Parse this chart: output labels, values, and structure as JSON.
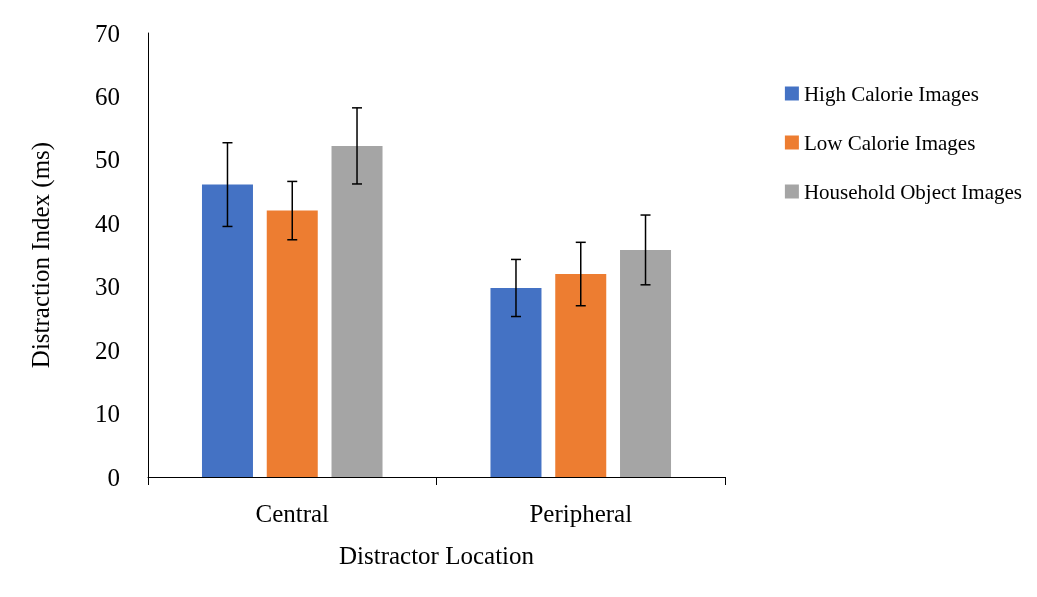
{
  "chart_data": {
    "type": "bar",
    "xlabel": "Distractor Location",
    "ylabel": "Distraction Index (ms)",
    "categories": [
      "Central",
      "Peripheral"
    ],
    "series": [
      {
        "name": "High Calorie Images",
        "color": "#4472c4",
        "values": [
          46.1,
          29.8
        ],
        "errors": [
          6.6,
          4.5
        ]
      },
      {
        "name": "Low Calorie Images",
        "color": "#ed7d31",
        "values": [
          42.0,
          32.0
        ],
        "errors": [
          4.6,
          5.0
        ]
      },
      {
        "name": "Household Object Images",
        "color": "#a5a5a5",
        "values": [
          52.2,
          35.8
        ],
        "errors": [
          6.0,
          5.5
        ]
      }
    ],
    "ylim": [
      0,
      70
    ],
    "yticks": [
      0,
      10,
      20,
      30,
      40,
      50,
      60,
      70
    ],
    "grid": false,
    "legend": "right"
  }
}
